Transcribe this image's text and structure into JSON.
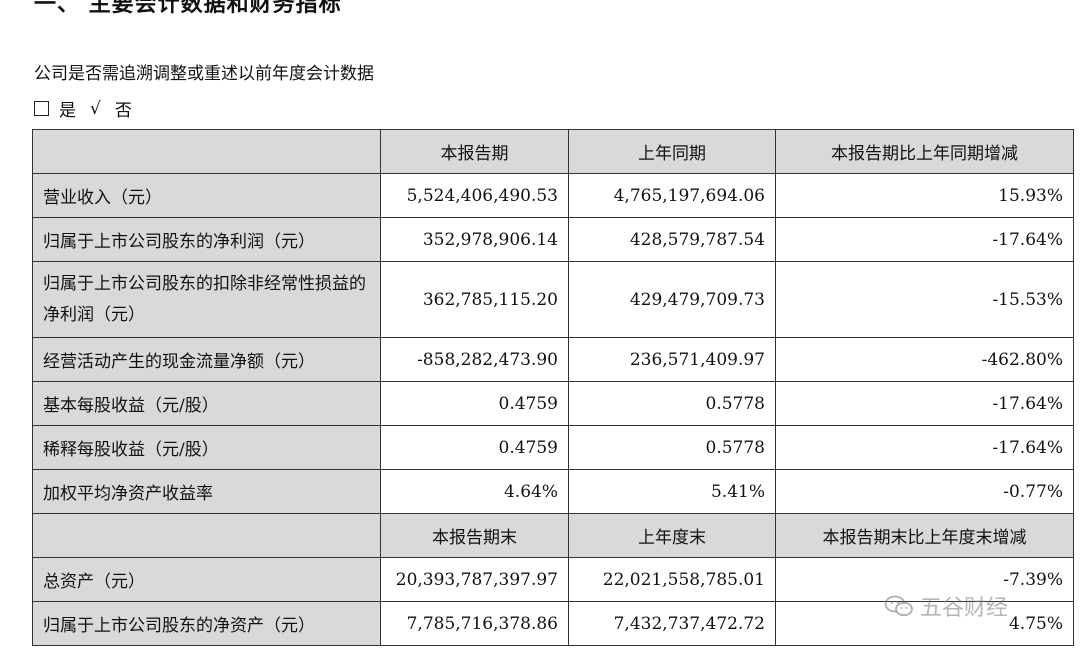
{
  "heading": "一、 主要会计数据和财务指标",
  "question": "公司是否需追溯调整或重述以前年度会计数据",
  "options": {
    "yes": "是",
    "check": "√",
    "no": "否"
  },
  "table": {
    "header1": [
      "本报告期",
      "上年同期",
      "本报告期比上年同期增减"
    ],
    "rows1": [
      {
        "label": "营业收入（元）",
        "current": "5,524,406,490.53",
        "previous": "4,765,197,694.06",
        "change": "15.93%"
      },
      {
        "label": "归属于上市公司股东的净利润（元）",
        "current": "352,978,906.14",
        "previous": "428,579,787.54",
        "change": "-17.64%"
      },
      {
        "label": "归属于上市公司股东的扣除非经常性损益的净利润（元）",
        "current": "362,785,115.20",
        "previous": "429,479,709.73",
        "change": "-15.53%"
      },
      {
        "label": "经营活动产生的现金流量净额（元）",
        "current": "-858,282,473.90",
        "previous": "236,571,409.97",
        "change": "-462.80%"
      },
      {
        "label": "基本每股收益（元/股）",
        "current": "0.4759",
        "previous": "0.5778",
        "change": "-17.64%"
      },
      {
        "label": "稀释每股收益（元/股）",
        "current": "0.4759",
        "previous": "0.5778",
        "change": "-17.64%"
      },
      {
        "label": "加权平均净资产收益率",
        "current": "4.64%",
        "previous": "5.41%",
        "change": "-0.77%"
      }
    ],
    "header2": [
      "本报告期末",
      "上年度末",
      "本报告期末比上年度末增减"
    ],
    "rows2": [
      {
        "label": "总资产（元）",
        "current": "20,393,787,397.97",
        "previous": "22,021,558,785.01",
        "change": "-7.39%"
      },
      {
        "label": "归属于上市公司股东的净资产（元）",
        "current": "7,785,716,378.86",
        "previous": "7,432,737,472.72",
        "change": "4.75%"
      }
    ]
  },
  "watermark": "五谷财经"
}
